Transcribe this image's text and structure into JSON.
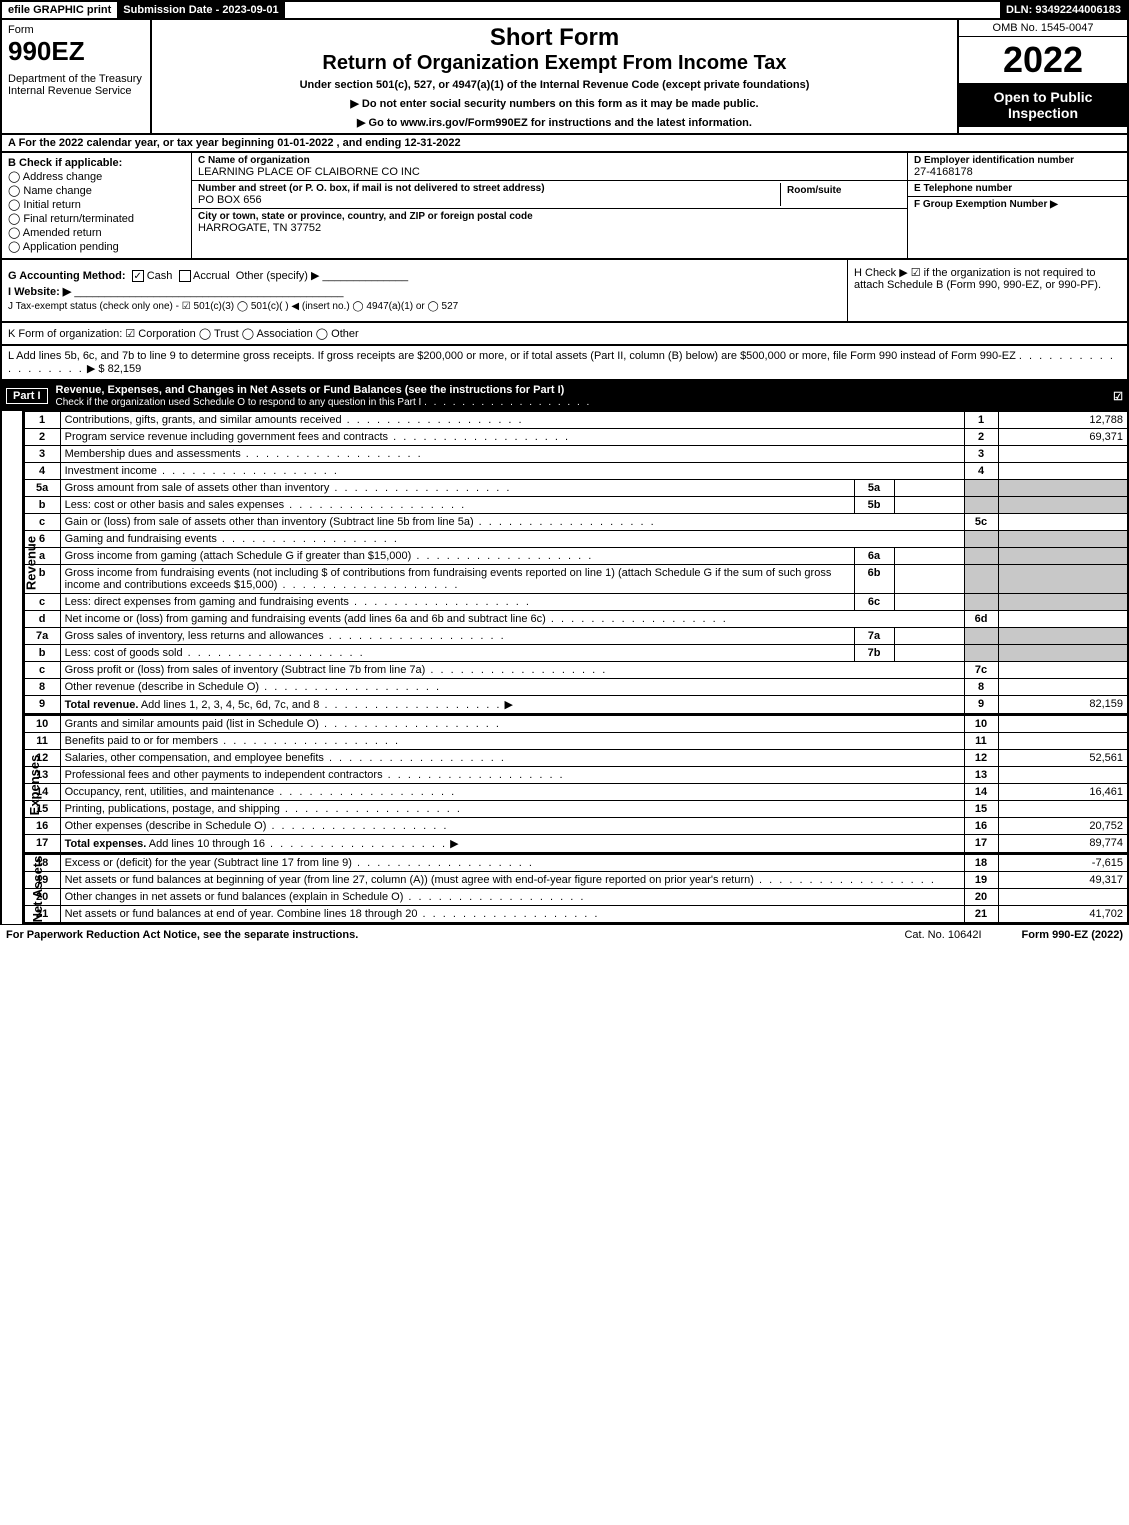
{
  "topbar": {
    "efile": "efile GRAPHIC print",
    "submission": "Submission Date - 2023-09-01",
    "dln": "DLN: 93492244006183"
  },
  "header": {
    "form_word": "Form",
    "form_num": "990EZ",
    "dept": "Department of the Treasury\nInternal Revenue Service",
    "short": "Short Form",
    "return_title": "Return of Organization Exempt From Income Tax",
    "under": "Under section 501(c), 527, or 4947(a)(1) of the Internal Revenue Code (except private foundations)",
    "bullet1": "▶ Do not enter social security numbers on this form as it may be made public.",
    "bullet2": "▶ Go to www.irs.gov/Form990EZ for instructions and the latest information.",
    "omb": "OMB No. 1545-0047",
    "year": "2022",
    "open": "Open to Public Inspection"
  },
  "rowA": "A  For the 2022 calendar year, or tax year beginning 01-01-2022 , and ending 12-31-2022",
  "B": {
    "hdr": "B  Check if applicable:",
    "opts": [
      "Address change",
      "Name change",
      "Initial return",
      "Final return/terminated",
      "Amended return",
      "Application pending"
    ]
  },
  "C": {
    "name_lbl": "C Name of organization",
    "name": "LEARNING PLACE OF CLAIBORNE CO INC",
    "street_lbl": "Number and street (or P. O. box, if mail is not delivered to street address)",
    "street": "PO BOX 656",
    "room_lbl": "Room/suite",
    "city_lbl": "City or town, state or province, country, and ZIP or foreign postal code",
    "city": "HARROGATE, TN  37752"
  },
  "D": {
    "lbl": "D Employer identification number",
    "val": "27-4168178"
  },
  "E": {
    "lbl": "E Telephone number",
    "val": ""
  },
  "F": {
    "lbl": "F Group Exemption Number  ▶",
    "val": ""
  },
  "G": {
    "lbl": "G Accounting Method:",
    "cash": "Cash",
    "accrual": "Accrual",
    "other": "Other (specify) ▶"
  },
  "H": "H  Check ▶ ☑ if the organization is not required to attach Schedule B (Form 990, 990-EZ, or 990-PF).",
  "I": "I Website: ▶",
  "J": "J Tax-exempt status (check only one) - ☑ 501(c)(3)  ◯ 501(c)(  ) ◀ (insert no.)  ◯ 4947(a)(1) or  ◯ 527",
  "K": "K Form of organization:  ☑ Corporation  ◯ Trust  ◯ Association  ◯ Other",
  "L": {
    "text": "L Add lines 5b, 6c, and 7b to line 9 to determine gross receipts. If gross receipts are $200,000 or more, or if total assets (Part II, column (B) below) are $500,000 or more, file Form 990 instead of Form 990-EZ",
    "arrow": "▶ $",
    "val": "82,159"
  },
  "partI": {
    "num": "Part I",
    "title": "Revenue, Expenses, and Changes in Net Assets or Fund Balances (see the instructions for Part I)",
    "sub": "Check if the organization used Schedule O to respond to any question in this Part I",
    "checked": "☑"
  },
  "sides": {
    "rev": "Revenue",
    "exp": "Expenses",
    "net": "Net Assets"
  },
  "revenue": [
    {
      "n": "1",
      "d": "Contributions, gifts, grants, and similar amounts received",
      "r": "1",
      "a": "12,788"
    },
    {
      "n": "2",
      "d": "Program service revenue including government fees and contracts",
      "r": "2",
      "a": "69,371"
    },
    {
      "n": "3",
      "d": "Membership dues and assessments",
      "r": "3",
      "a": ""
    },
    {
      "n": "4",
      "d": "Investment income",
      "r": "4",
      "a": ""
    },
    {
      "n": "5a",
      "d": "Gross amount from sale of assets other than inventory",
      "mid": "5a",
      "ma": "",
      "shade": true
    },
    {
      "n": "b",
      "d": "Less: cost or other basis and sales expenses",
      "mid": "5b",
      "ma": "",
      "shade": true
    },
    {
      "n": "c",
      "d": "Gain or (loss) from sale of assets other than inventory (Subtract line 5b from line 5a)",
      "r": "5c",
      "a": ""
    },
    {
      "n": "6",
      "d": "Gaming and fundraising events",
      "shade": true
    },
    {
      "n": "a",
      "d": "Gross income from gaming (attach Schedule G if greater than $15,000)",
      "mid": "6a",
      "ma": "",
      "shade": true
    },
    {
      "n": "b",
      "d": "Gross income from fundraising events (not including $                     of contributions from fundraising events reported on line 1) (attach Schedule G if the sum of such gross income and contributions exceeds $15,000)",
      "mid": "6b",
      "ma": "",
      "shade": true
    },
    {
      "n": "c",
      "d": "Less: direct expenses from gaming and fundraising events",
      "mid": "6c",
      "ma": "",
      "shade": true
    },
    {
      "n": "d",
      "d": "Net income or (loss) from gaming and fundraising events (add lines 6a and 6b and subtract line 6c)",
      "r": "6d",
      "a": ""
    },
    {
      "n": "7a",
      "d": "Gross sales of inventory, less returns and allowances",
      "mid": "7a",
      "ma": "",
      "shade": true
    },
    {
      "n": "b",
      "d": "Less: cost of goods sold",
      "mid": "7b",
      "ma": "",
      "shade": true
    },
    {
      "n": "c",
      "d": "Gross profit or (loss) from sales of inventory (Subtract line 7b from line 7a)",
      "r": "7c",
      "a": ""
    },
    {
      "n": "8",
      "d": "Other revenue (describe in Schedule O)",
      "r": "8",
      "a": ""
    },
    {
      "n": "9",
      "d": "Total revenue. Add lines 1, 2, 3, 4, 5c, 6d, 7c, and 8",
      "r": "9",
      "a": "82,159",
      "bold": true,
      "arrow": true
    }
  ],
  "expenses": [
    {
      "n": "10",
      "d": "Grants and similar amounts paid (list in Schedule O)",
      "r": "10",
      "a": ""
    },
    {
      "n": "11",
      "d": "Benefits paid to or for members",
      "r": "11",
      "a": ""
    },
    {
      "n": "12",
      "d": "Salaries, other compensation, and employee benefits",
      "r": "12",
      "a": "52,561"
    },
    {
      "n": "13",
      "d": "Professional fees and other payments to independent contractors",
      "r": "13",
      "a": ""
    },
    {
      "n": "14",
      "d": "Occupancy, rent, utilities, and maintenance",
      "r": "14",
      "a": "16,461"
    },
    {
      "n": "15",
      "d": "Printing, publications, postage, and shipping",
      "r": "15",
      "a": ""
    },
    {
      "n": "16",
      "d": "Other expenses (describe in Schedule O)",
      "r": "16",
      "a": "20,752"
    },
    {
      "n": "17",
      "d": "Total expenses. Add lines 10 through 16",
      "r": "17",
      "a": "89,774",
      "bold": true,
      "arrow": true
    }
  ],
  "netassets": [
    {
      "n": "18",
      "d": "Excess or (deficit) for the year (Subtract line 17 from line 9)",
      "r": "18",
      "a": "-7,615"
    },
    {
      "n": "19",
      "d": "Net assets or fund balances at beginning of year (from line 27, column (A)) (must agree with end-of-year figure reported on prior year's return)",
      "r": "19",
      "a": "49,317"
    },
    {
      "n": "20",
      "d": "Other changes in net assets or fund balances (explain in Schedule O)",
      "r": "20",
      "a": ""
    },
    {
      "n": "21",
      "d": "Net assets or fund balances at end of year. Combine lines 18 through 20",
      "r": "21",
      "a": "41,702"
    }
  ],
  "footer": {
    "l": "For Paperwork Reduction Act Notice, see the separate instructions.",
    "m": "Cat. No. 10642I",
    "r": "Form 990-EZ (2022)"
  }
}
